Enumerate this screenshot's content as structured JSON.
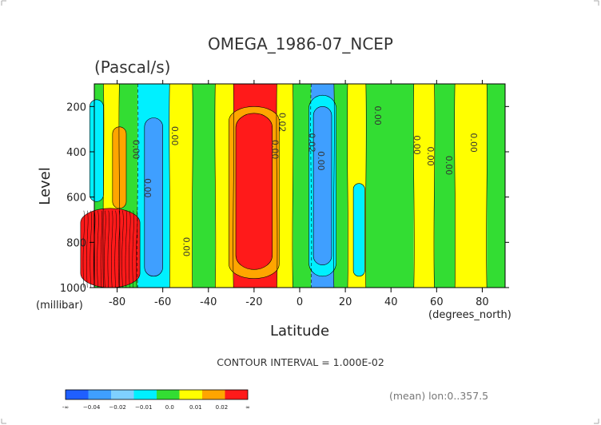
{
  "chart_data": {
    "type": "heatmap",
    "title": "OMEGA_1986-07_NCEP",
    "subtitle": "(Pascal/s)",
    "xlabel": "Latitude",
    "x_unit": "(degrees_north)",
    "ylabel": "Level",
    "y_unit": "(millibar)",
    "xlim": [
      -90,
      90
    ],
    "ylim": [
      1000,
      100
    ],
    "x_ticks": [
      "-80",
      "-60",
      "-40",
      "-20",
      "0",
      "20",
      "40",
      "60",
      "80"
    ],
    "x_tick_values": [
      -80,
      -60,
      -40,
      -20,
      0,
      20,
      40,
      60,
      80
    ],
    "y_ticks": [
      "200",
      "400",
      "600",
      "800",
      "1000"
    ],
    "y_tick_values": [
      200,
      400,
      600,
      800,
      1000
    ],
    "contour_labels": [
      "0.00",
      "0.00",
      "0.00",
      "0.00",
      "0.02",
      "0.00",
      "0.02",
      "0.00",
      "0.00",
      "0.00",
      "0.00",
      "0.00",
      "0.00"
    ],
    "contour_interval_text": "CONTOUR INTERVAL = 1.000E-02",
    "footer_note": "(mean) lon:0..357.5",
    "colorbar": {
      "labels": [
        "-∞",
        "−0.04",
        "−0.02",
        "−0.01",
        "0.0",
        "0.01",
        "0.02",
        "∞"
      ],
      "colors": [
        "#1f5fff",
        "#3f9fff",
        "#7fd0ff",
        "#00f0ff",
        "#33dd33",
        "#ffff00",
        "#ffa500",
        "#ff1a1a"
      ]
    },
    "columns": [
      {
        "lat_from": -90,
        "lat_to": -86,
        "color": "#33dd33"
      },
      {
        "lat_from": -86,
        "lat_to": -79,
        "color": "#ffff00"
      },
      {
        "lat_from": -79,
        "lat_to": -71,
        "color": "#33dd33"
      },
      {
        "lat_from": -71,
        "lat_to": -57,
        "color": "#00f0ff"
      },
      {
        "lat_from": -57,
        "lat_to": -47,
        "color": "#ffff00"
      },
      {
        "lat_from": -47,
        "lat_to": -37,
        "color": "#33dd33"
      },
      {
        "lat_from": -37,
        "lat_to": -29,
        "color": "#ffff00"
      },
      {
        "lat_from": -29,
        "lat_to": -10,
        "color": "#ff1a1a"
      },
      {
        "lat_from": -10,
        "lat_to": -3,
        "color": "#ffff00"
      },
      {
        "lat_from": -3,
        "lat_to": 5,
        "color": "#33dd33"
      },
      {
        "lat_from": 5,
        "lat_to": 15,
        "color": "#3f9fff"
      },
      {
        "lat_from": 15,
        "lat_to": 21,
        "color": "#33dd33"
      },
      {
        "lat_from": 21,
        "lat_to": 29,
        "color": "#ffff00"
      },
      {
        "lat_from": 29,
        "lat_to": 50,
        "color": "#33dd33"
      },
      {
        "lat_from": 50,
        "lat_to": 59,
        "color": "#ffff00"
      },
      {
        "lat_from": 59,
        "lat_to": 68,
        "color": "#33dd33"
      },
      {
        "lat_from": 68,
        "lat_to": 82,
        "color": "#ffff00"
      },
      {
        "lat_from": 82,
        "lat_to": 90,
        "color": "#33dd33"
      }
    ],
    "cores": [
      {
        "lat_center": -89,
        "lat_width": 6,
        "level_top": 170,
        "level_bottom": 620,
        "color": "#00f0ff"
      },
      {
        "lat_center": -79,
        "lat_width": 6,
        "level_top": 290,
        "level_bottom": 650,
        "color": "#ffa500"
      },
      {
        "lat_center": -83,
        "lat_width": 26,
        "level_top": 650,
        "level_bottom": 1000,
        "color": "#ff1a1a"
      },
      {
        "lat_center": -64,
        "lat_width": 8,
        "level_top": 250,
        "level_bottom": 950,
        "color": "#3f9fff"
      },
      {
        "lat_center": -20,
        "lat_width": 22,
        "level_top": 200,
        "level_bottom": 960,
        "color": "#ffa500"
      },
      {
        "lat_center": -20,
        "lat_width": 16,
        "level_top": 230,
        "level_bottom": 920,
        "color": "#ff1a1a"
      },
      {
        "lat_center": 10,
        "lat_width": 12,
        "level_top": 150,
        "level_bottom": 950,
        "color": "#00f0ff"
      },
      {
        "lat_center": 10,
        "lat_width": 8,
        "level_top": 200,
        "level_bottom": 900,
        "color": "#3f9fff"
      },
      {
        "lat_center": 26,
        "lat_width": 5,
        "level_top": 540,
        "level_bottom": 950,
        "color": "#00f0ff"
      }
    ]
  }
}
